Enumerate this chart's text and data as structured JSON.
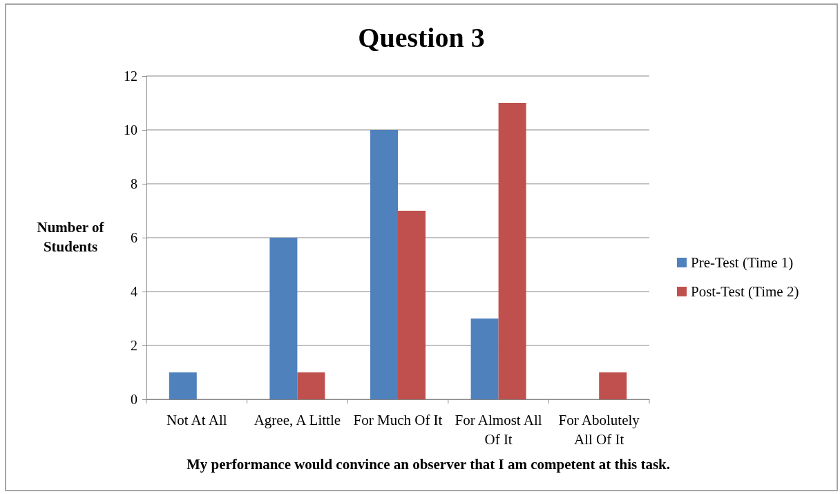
{
  "chart_data": {
    "type": "bar",
    "title": "Question 3",
    "xlabel": "My performance would convince an observer that I am competent at this task.",
    "ylabel": "Number of Students",
    "categories": [
      "Not At All",
      "Agree, A Little",
      "For Much Of It",
      "For Almost All Of It",
      "For Abolutely All Of It"
    ],
    "series": [
      {
        "name": "Pre-Test (Time 1)",
        "color": "#4f81bd",
        "values": [
          1,
          6,
          10,
          3,
          0
        ]
      },
      {
        "name": "Post-Test (Time 2)",
        "color": "#c0504d",
        "values": [
          0,
          1,
          7,
          11,
          1
        ]
      }
    ],
    "ylim": [
      0,
      12
    ],
    "yticks": [
      0,
      2,
      4,
      6,
      8,
      10,
      12
    ],
    "grid": "y",
    "legend": "right"
  }
}
